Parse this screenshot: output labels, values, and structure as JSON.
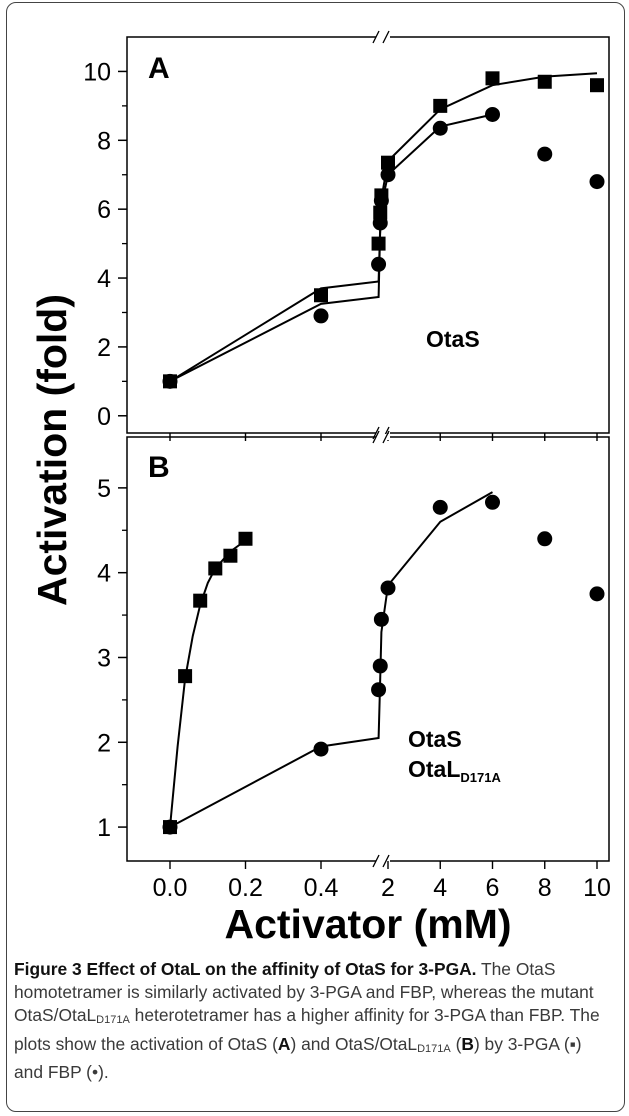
{
  "chart_data": [
    {
      "type": "scatter",
      "panel_label": "A",
      "annotation": "OtaS",
      "ylabel": "Activation (fold)",
      "xlabel": "Activator (mM)",
      "ylim": [
        -0.5,
        11
      ],
      "y_ticks": [
        0,
        2,
        4,
        6,
        8,
        10
      ],
      "x_ticks": [
        "0.0",
        "0.2",
        "0.4",
        "2",
        "4",
        "6",
        "8",
        "10"
      ],
      "x_scale": "broken: linear 0–0.4 mM then linear 2–10 mM",
      "series": [
        {
          "marker": "square",
          "points": [
            [
              0,
              1.0
            ],
            [
              0.4,
              3.5
            ],
            [
              0.5,
              5.0
            ],
            [
              0.8,
              5.9
            ],
            [
              1.0,
              6.4
            ],
            [
              2,
              7.35
            ],
            [
              4,
              9.0
            ],
            [
              6,
              9.8
            ],
            [
              8,
              9.7
            ],
            [
              10,
              9.6
            ]
          ],
          "fit": [
            [
              0,
              1.0
            ],
            [
              0.4,
              3.7
            ],
            [
              0.5,
              3.9
            ],
            [
              0.75,
              5.3
            ],
            [
              1.0,
              6.3
            ],
            [
              2,
              7.4
            ],
            [
              4,
              8.9
            ],
            [
              6,
              9.6
            ],
            [
              8,
              9.85
            ],
            [
              10,
              9.95
            ]
          ]
        },
        {
          "marker": "circle",
          "points": [
            [
              0,
              1.0
            ],
            [
              0.4,
              2.9
            ],
            [
              0.5,
              4.4
            ],
            [
              0.8,
              5.6
            ],
            [
              1.0,
              6.25
            ],
            [
              2,
              7.0
            ],
            [
              4,
              8.35
            ],
            [
              6,
              8.75
            ],
            [
              8,
              7.6
            ],
            [
              10,
              6.8
            ]
          ],
          "fit": [
            [
              0,
              1.0
            ],
            [
              0.4,
              3.25
            ],
            [
              0.5,
              3.45
            ],
            [
              0.75,
              5.2
            ],
            [
              1.0,
              6.1
            ],
            [
              2,
              7.0
            ],
            [
              4,
              8.4
            ],
            [
              6,
              8.75
            ]
          ]
        }
      ]
    },
    {
      "type": "scatter",
      "panel_label": "B",
      "annotation": [
        "OtaS",
        "OtaL",
        "D171A"
      ],
      "ylim": [
        0.6,
        5.6
      ],
      "y_ticks": [
        1,
        2,
        3,
        4,
        5
      ],
      "x_ticks": [
        "0.0",
        "0.2",
        "0.4",
        "2",
        "4",
        "6",
        "8",
        "10"
      ],
      "series": [
        {
          "marker": "square",
          "points": [
            [
              0,
              1.0
            ],
            [
              0.04,
              2.78
            ],
            [
              0.08,
              3.67
            ],
            [
              0.12,
              4.05
            ],
            [
              0.16,
              4.2
            ],
            [
              0.2,
              4.4
            ]
          ],
          "fit": [
            [
              0,
              1.0
            ],
            [
              0.02,
              1.95
            ],
            [
              0.04,
              2.75
            ],
            [
              0.06,
              3.25
            ],
            [
              0.08,
              3.62
            ],
            [
              0.1,
              3.88
            ],
            [
              0.12,
              4.05
            ],
            [
              0.16,
              4.25
            ],
            [
              0.2,
              4.38
            ]
          ]
        },
        {
          "marker": "circle",
          "points": [
            [
              0,
              1.0
            ],
            [
              0.4,
              1.92
            ],
            [
              0.5,
              2.62
            ],
            [
              0.8,
              2.9
            ],
            [
              1.0,
              3.45
            ],
            [
              2,
              3.82
            ],
            [
              4,
              4.77
            ],
            [
              6,
              4.83
            ],
            [
              8,
              4.4
            ],
            [
              10,
              3.75
            ]
          ],
          "fit": [
            [
              0,
              1.0
            ],
            [
              0.4,
              1.95
            ],
            [
              0.5,
              2.05
            ],
            [
              0.75,
              2.65
            ],
            [
              1.0,
              3.3
            ],
            [
              2,
              3.85
            ],
            [
              4,
              4.6
            ],
            [
              6,
              4.95
            ]
          ]
        }
      ]
    }
  ],
  "caption": {
    "title": "Figure 3 Effect of OtaL on the affinity of OtaS for 3-PGA.",
    "line1": " The OtaS homotetramer is similarly activated by 3-PGA and FBP, whereas the mutant OtaS/OtaL",
    "sub1": "D171A",
    "line2": " heterotetramer has a higher affinity for 3-PGA than FBP. The plots show the activation of OtaS (",
    "bold_a": "A",
    "line3": ") and OtaS/OtaL",
    "sub2": "D171A",
    "line4": " (",
    "bold_b": "B",
    "line5": ") by 3-PGA (▪) and FBP (•)."
  }
}
